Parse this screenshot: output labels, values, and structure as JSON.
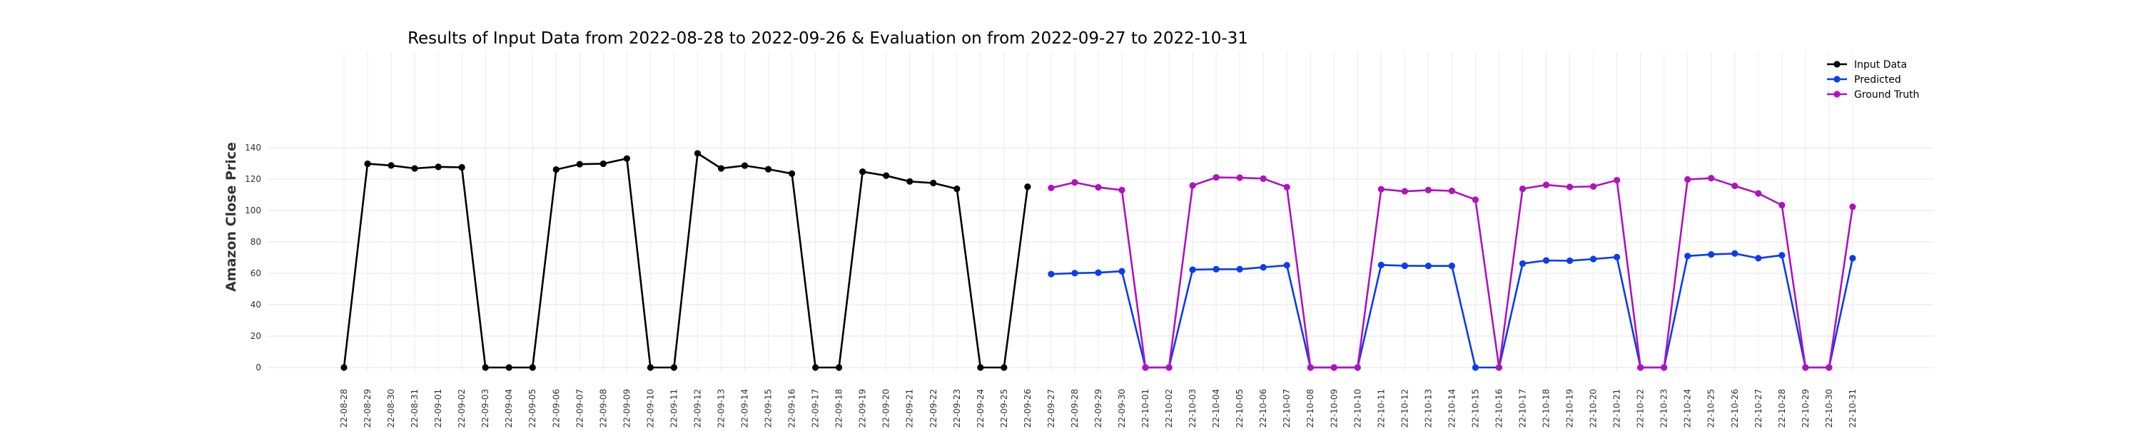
{
  "chart_data": {
    "type": "line",
    "title": "Results of Input Data from 2022-08-28 to 2022-09-26 & Evaluation on from 2022-09-27 to 2022-10-31",
    "xlabel": "",
    "ylabel": "Amazon Close Price",
    "ylim": [
      0,
      140
    ],
    "yticks": [
      0,
      20,
      40,
      60,
      80,
      100,
      120,
      140
    ],
    "grid": true,
    "legend_position": "top-right",
    "x": [
      "2022-08-28",
      "2022-08-29",
      "2022-08-30",
      "2022-08-31",
      "2022-09-01",
      "2022-09-02",
      "2022-09-03",
      "2022-09-04",
      "2022-09-05",
      "2022-09-06",
      "2022-09-07",
      "2022-09-08",
      "2022-09-09",
      "2022-09-10",
      "2022-09-11",
      "2022-09-12",
      "2022-09-13",
      "2022-09-14",
      "2022-09-15",
      "2022-09-16",
      "2022-09-17",
      "2022-09-18",
      "2022-09-19",
      "2022-09-20",
      "2022-09-21",
      "2022-09-22",
      "2022-09-23",
      "2022-09-24",
      "2022-09-25",
      "2022-09-26",
      "2022-09-27",
      "2022-09-28",
      "2022-09-29",
      "2022-09-30",
      "2022-10-01",
      "2022-10-02",
      "2022-10-03",
      "2022-10-04",
      "2022-10-05",
      "2022-10-06",
      "2022-10-07",
      "2022-10-08",
      "2022-10-09",
      "2022-10-10",
      "2022-10-11",
      "2022-10-12",
      "2022-10-13",
      "2022-10-14",
      "2022-10-15",
      "2022-10-16",
      "2022-10-17",
      "2022-10-18",
      "2022-10-19",
      "2022-10-20",
      "2022-10-21",
      "2022-10-22",
      "2022-10-23",
      "2022-10-24",
      "2022-10-25",
      "2022-10-26",
      "2022-10-27",
      "2022-10-28",
      "2022-10-29",
      "2022-10-30",
      "2022-10-31"
    ],
    "x_tick_labels": [
      "2022-08-28",
      "2022-08-29",
      "2022-08-30",
      "2022-08-31",
      "2022-09-01",
      "2022-09-02",
      "2022-09-03",
      "2022-09-04",
      "2022-09-05",
      "2022-09-06",
      "2022-09-07",
      "2022-09-08",
      "2022-09-09",
      "2022-09-10",
      "2022-09-11",
      "2022-09-12",
      "2022-09-13",
      "2022-09-14",
      "2022-09-15",
      "2022-09-16",
      "2022-09-17",
      "2022-09-18",
      "2022-09-19",
      "2022-09-20",
      "2022-09-21",
      "2022-09-22",
      "2022-09-23",
      "2022-09-24",
      "2022-09-25",
      "2022-09-26",
      "2022-09-27",
      "2022-09-28",
      "2022-09-29",
      "2022-09-30",
      "2022-10-01",
      "2022-10-02",
      "2022-10-03",
      "2022-10-04",
      "2022-10-05",
      "2022-10-06",
      "2022-10-07",
      "2022-10-08",
      "2022-10-09",
      "2022-10-10",
      "2022-10-11",
      "2022-10-12",
      "2022-10-13",
      "2022-10-14",
      "2022-10-15",
      "2022-10-16",
      "2022-10-17",
      "2022-10-18",
      "2022-10-19",
      "2022-10-20",
      "2022-10-21",
      "2022-10-22",
      "2022-10-23",
      "2022-10-24",
      "2022-10-25",
      "2022-10-26",
      "2022-10-27",
      "2022-10-28",
      "2022-10-29",
      "2022-10-30",
      "2022-10-31"
    ],
    "series": [
      {
        "name": "Input Data",
        "color": "#000000",
        "x": [
          "2022-08-28",
          "2022-08-29",
          "2022-08-30",
          "2022-08-31",
          "2022-09-01",
          "2022-09-02",
          "2022-09-03",
          "2022-09-04",
          "2022-09-05",
          "2022-09-06",
          "2022-09-07",
          "2022-09-08",
          "2022-09-09",
          "2022-09-10",
          "2022-09-11",
          "2022-09-12",
          "2022-09-13",
          "2022-09-14",
          "2022-09-15",
          "2022-09-16",
          "2022-09-17",
          "2022-09-18",
          "2022-09-19",
          "2022-09-20",
          "2022-09-21",
          "2022-09-22",
          "2022-09-23",
          "2022-09-24",
          "2022-09-25",
          "2022-09-26"
        ],
        "values": [
          0,
          129.8,
          128.7,
          126.8,
          127.8,
          127.5,
          0,
          0,
          0,
          126.1,
          129.5,
          129.8,
          133.1,
          0,
          0,
          136.4,
          126.8,
          128.6,
          126.3,
          123.5,
          0,
          0,
          124.7,
          122.2,
          118.5,
          117.5,
          113.8,
          0,
          0,
          115.1
        ]
      },
      {
        "name": "Predicted",
        "color": "#0a3cf0",
        "x": [
          "2022-09-27",
          "2022-09-28",
          "2022-09-29",
          "2022-09-30",
          "2022-10-01",
          "2022-10-02",
          "2022-10-03",
          "2022-10-04",
          "2022-10-05",
          "2022-10-06",
          "2022-10-07",
          "2022-10-08",
          "2022-10-09",
          "2022-10-10",
          "2022-10-11",
          "2022-10-12",
          "2022-10-13",
          "2022-10-14",
          "2022-10-15",
          "2022-10-16",
          "2022-10-17",
          "2022-10-18",
          "2022-10-19",
          "2022-10-20",
          "2022-10-21",
          "2022-10-22",
          "2022-10-23",
          "2022-10-24",
          "2022-10-25",
          "2022-10-26",
          "2022-10-27",
          "2022-10-28",
          "2022-10-29",
          "2022-10-30",
          "2022-10-31"
        ],
        "values": [
          59.5,
          60.1,
          60.4,
          61.3,
          0,
          0,
          62.3,
          62.6,
          62.6,
          63.8,
          65.1,
          0,
          0,
          0,
          65.3,
          64.8,
          64.7,
          64.7,
          0,
          0,
          66.2,
          68.2,
          68.0,
          69.1,
          70.3,
          0,
          0,
          71.0,
          72.0,
          72.6,
          69.6,
          71.5,
          0,
          0,
          69.6
        ]
      },
      {
        "name": "Ground Truth",
        "color": "#b012c0",
        "x": [
          "2022-09-27",
          "2022-09-28",
          "2022-09-29",
          "2022-09-30",
          "2022-10-01",
          "2022-10-02",
          "2022-10-03",
          "2022-10-04",
          "2022-10-05",
          "2022-10-06",
          "2022-10-07",
          "2022-10-08",
          "2022-10-09",
          "2022-10-10",
          "2022-10-11",
          "2022-10-12",
          "2022-10-13",
          "2022-10-14",
          "2022-10-15",
          "2022-10-16",
          "2022-10-17",
          "2022-10-18",
          "2022-10-19",
          "2022-10-20",
          "2022-10-21",
          "2022-10-22",
          "2022-10-23",
          "2022-10-24",
          "2022-10-25",
          "2022-10-26",
          "2022-10-27",
          "2022-10-28",
          "2022-10-29",
          "2022-10-30",
          "2022-10-31"
        ],
        "values": [
          114.4,
          117.9,
          114.8,
          113.0,
          0,
          0,
          115.9,
          121.1,
          120.9,
          120.3,
          114.9,
          0,
          0,
          0,
          113.6,
          112.2,
          113.0,
          112.5,
          106.9,
          0,
          113.8,
          116.3,
          115.0,
          115.3,
          119.3,
          0,
          0,
          119.8,
          120.6,
          115.7,
          110.9,
          103.4,
          0,
          0,
          102.4
        ]
      }
    ]
  }
}
